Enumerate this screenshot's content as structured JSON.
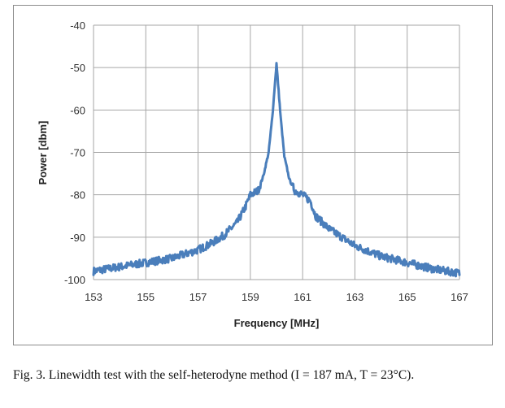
{
  "chart_data": {
    "type": "line",
    "xlabel": "Frequency [MHz]",
    "ylabel": "Power [dbm]",
    "xlim": [
      153,
      167
    ],
    "ylim": [
      -100,
      -40
    ],
    "xticks": [
      153,
      155,
      157,
      159,
      161,
      163,
      165,
      167
    ],
    "yticks": [
      -40,
      -50,
      -60,
      -70,
      -80,
      -90,
      -100
    ],
    "grid": true,
    "legend": "none",
    "series_color": "#4a7ebb",
    "series": [
      {
        "x": [
          153.0,
          154.0,
          155.0,
          156.0,
          157.0,
          157.5,
          158.0,
          158.5,
          158.8,
          159.0,
          159.3,
          159.5,
          159.7,
          159.85,
          160.0,
          160.15,
          160.3,
          160.5,
          160.7,
          161.0,
          161.3,
          161.5,
          162.0,
          162.5,
          163.0,
          164.0,
          165.0,
          166.0,
          167.0
        ],
        "y": [
          -98,
          -97,
          -96,
          -95,
          -93,
          -91.5,
          -89.5,
          -86.5,
          -83,
          -80,
          -79,
          -75.5,
          -70,
          -61,
          -49,
          -61,
          -71,
          -76.5,
          -79,
          -80,
          -81.5,
          -85,
          -88,
          -90,
          -92,
          -94.5,
          -96,
          -97.5,
          -98.5
        ]
      }
    ]
  },
  "caption": {
    "text": "Fig. 3.    Linewidth test with the self-heterodyne method (I = 187 mA, T = 23°C)."
  }
}
